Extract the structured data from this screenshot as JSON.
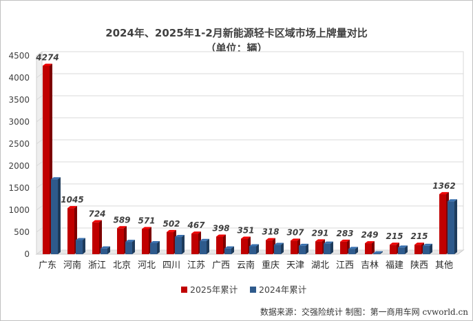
{
  "chart_data": {
    "type": "bar",
    "title": "2024年、2025年1-2月新能源轻卡区域市场上牌量对比",
    "subtitle": "（单位：辆）",
    "categories": [
      "广东",
      "河南",
      "浙江",
      "北京",
      "河北",
      "四川",
      "江苏",
      "广西",
      "云南",
      "重庆",
      "天津",
      "湖北",
      "江西",
      "吉林",
      "福建",
      "陕西",
      "其他"
    ],
    "series": [
      {
        "name": "2025年累计",
        "color": "#c00000",
        "values": [
          4274,
          1045,
          724,
          589,
          571,
          502,
          467,
          398,
          351,
          318,
          307,
          291,
          283,
          249,
          215,
          215,
          1362
        ]
      },
      {
        "name": "2024年累计",
        "color": "#2e5a8c",
        "values": [
          1700,
          320,
          130,
          280,
          250,
          390,
          300,
          130,
          180,
          210,
          190,
          240,
          120,
          20,
          150,
          190,
          1200
        ]
      }
    ],
    "data_labels": [
      "4274",
      "1045",
      "724",
      "589",
      "571",
      "502",
      "467",
      "398",
      "351",
      "318",
      "307",
      "291",
      "283",
      "249",
      "215",
      "215",
      "1362"
    ],
    "yticks": [
      "0",
      "500",
      "1000",
      "1500",
      "2000",
      "2500",
      "3000",
      "3500",
      "4000",
      "4500"
    ],
    "ylim": [
      0,
      4500
    ],
    "legend_position": "bottom",
    "source": "数据来源：交强险统计  制图：第一商用车网 cvworld.cn"
  }
}
